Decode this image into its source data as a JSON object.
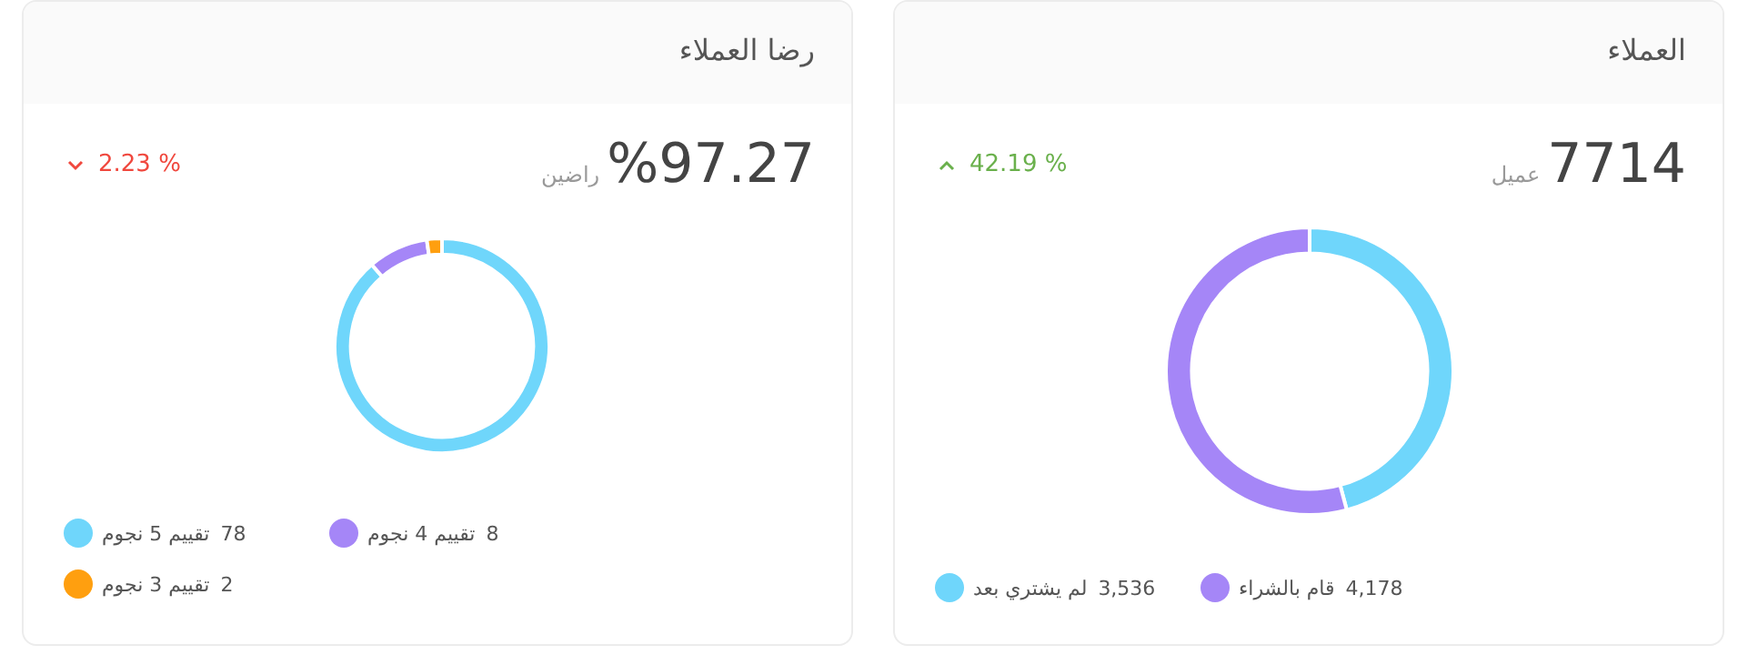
{
  "chart_data": [
    {
      "type": "donut",
      "title": "العملاء",
      "categories": [
        "لم يشتري بعد",
        "قام بالشراء"
      ],
      "values": [
        3536,
        4178
      ],
      "colors": [
        "#6fd6fb",
        "#a586f7"
      ],
      "value_labels": [
        "3,536",
        "4,178"
      ],
      "legend": "bottom",
      "annotations": [
        "7714",
        "عميل",
        "42.19 %"
      ]
    },
    {
      "type": "donut",
      "title": "رضا العملاء",
      "categories": [
        "تقييم 5 نجوم",
        "تقييم 4 نجوم",
        "تقييم 3 نجوم"
      ],
      "values": [
        78,
        8,
        2
      ],
      "colors": [
        "#6fd6fb",
        "#a586f7",
        "#ff9f0f"
      ],
      "value_labels": [
        "78",
        "8",
        "2"
      ],
      "legend": "bottom",
      "annotations": [
        "%97.27",
        "راضين",
        "2.23 %"
      ]
    }
  ]
}
